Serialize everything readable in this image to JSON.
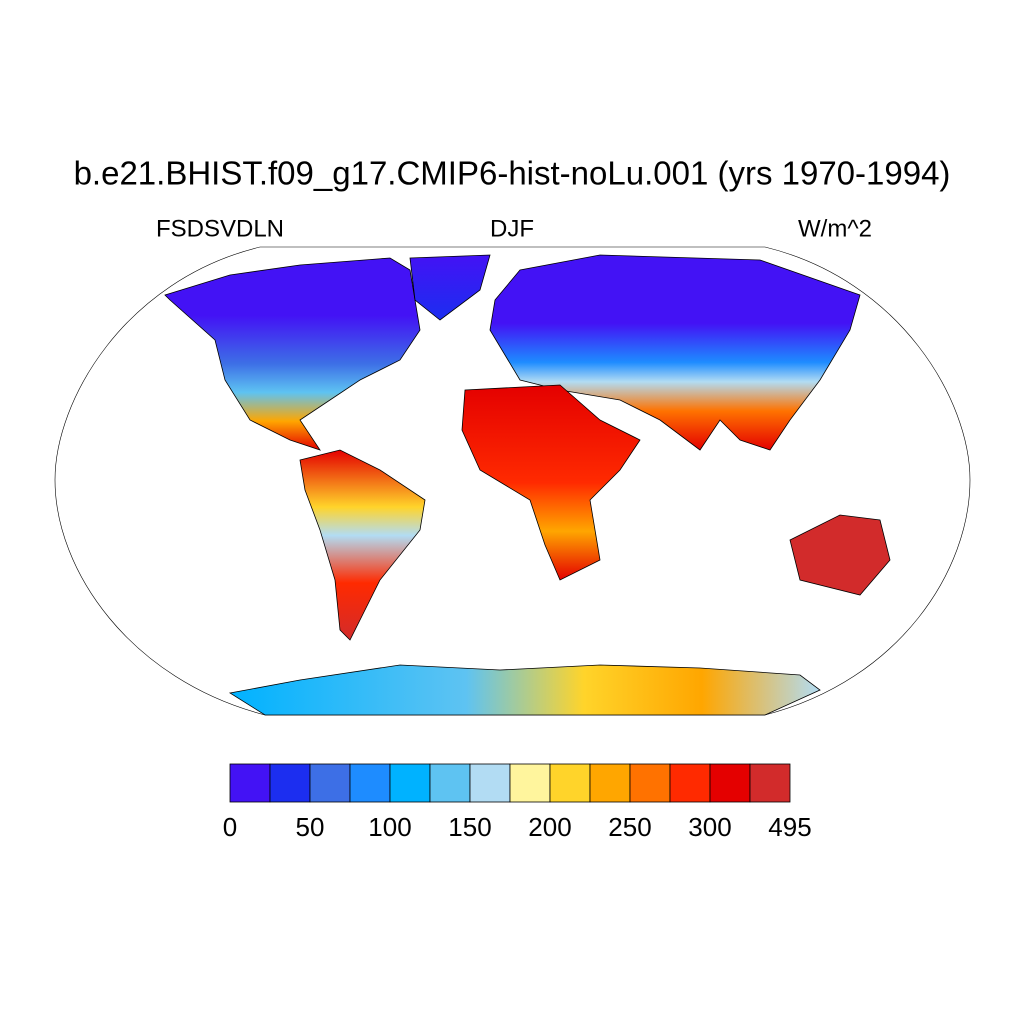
{
  "title": "b.e21.BHIST.f09_g17.CMIP6-hist-noLu.001 (yrs 1970-1994)",
  "subtitle_left": "FSDSVDLN",
  "subtitle_center": "DJF",
  "subtitle_right": "W/m^2",
  "colorbar": {
    "colors": [
      "#4312f5",
      "#1c2ef0",
      "#3d6fe6",
      "#1e8cff",
      "#00b2ff",
      "#5ec3f2",
      "#b2dcf3",
      "#fff59d",
      "#ffd42a",
      "#ffa600",
      "#ff7200",
      "#ff2a00",
      "#e40000",
      "#d22b2b"
    ],
    "labels": [
      0,
      50,
      100,
      150,
      200,
      250,
      300,
      495
    ]
  }
}
